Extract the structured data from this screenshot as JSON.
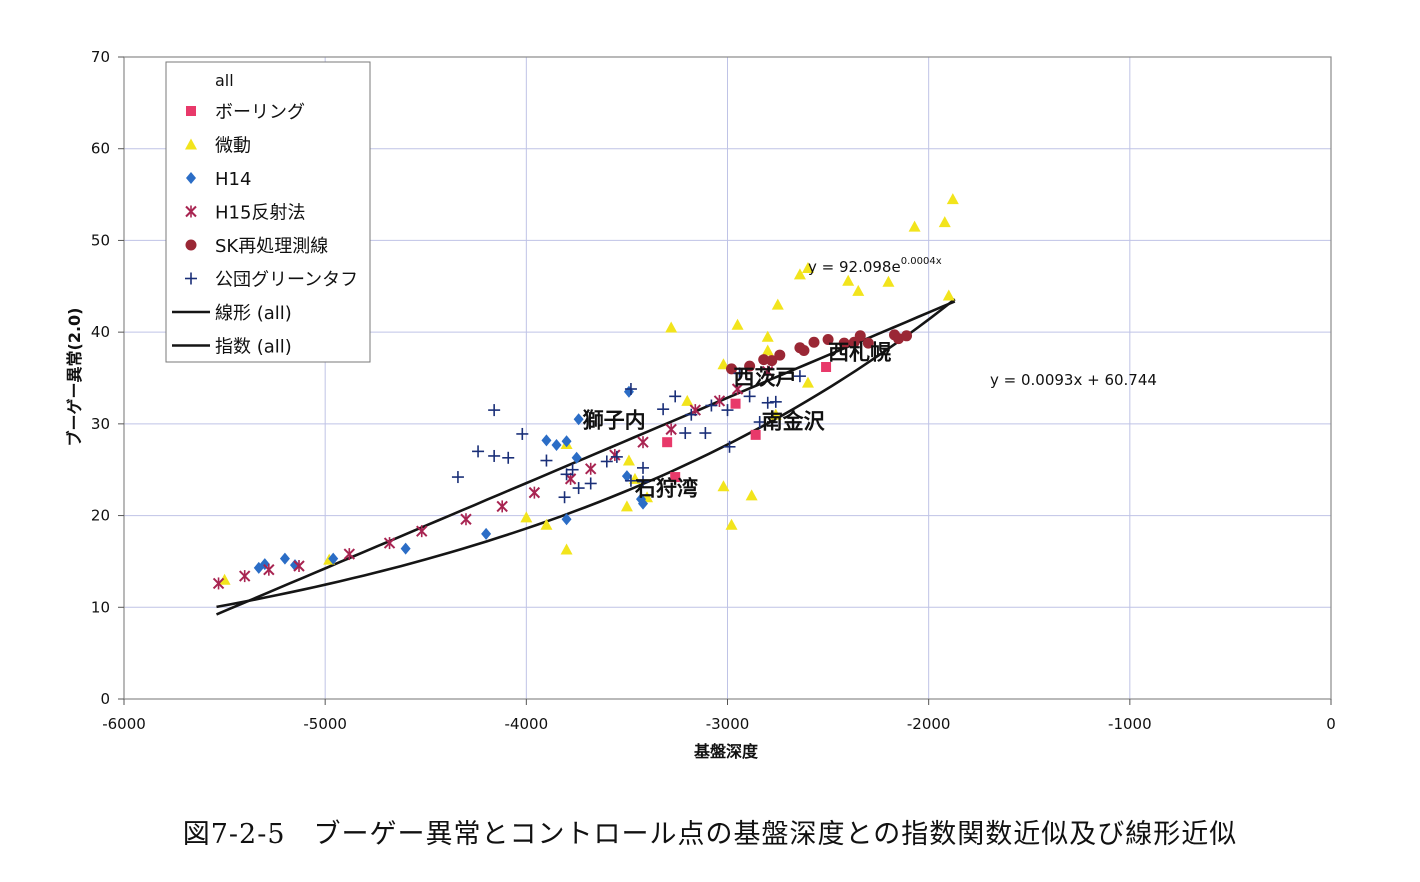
{
  "caption": "図7-2-5　ブーゲー異常とコントロール点の基盤深度との指数関数近似及び線形近似",
  "chart_data": {
    "type": "scatter",
    "title": "",
    "xlabel": "基盤深度",
    "ylabel": "ブーゲー異常(2.0)",
    "xlim": [
      -6000,
      0
    ],
    "ylim": [
      0,
      70
    ],
    "xticks": [
      -6000,
      -5000,
      -4000,
      -3000,
      -2000,
      -1000,
      0
    ],
    "yticks": [
      0,
      10,
      20,
      30,
      40,
      50,
      60,
      70
    ],
    "grid": true,
    "legend_position": "top-left",
    "legend_title": "all",
    "series": [
      {
        "name": "ボーリング",
        "marker": "square",
        "color": "#e8396a",
        "points": [
          [
            -3300,
            28
          ],
          [
            -3260,
            24.2
          ],
          [
            -2860,
            28.8
          ],
          [
            -2960,
            32.2
          ],
          [
            -2510,
            36.2
          ]
        ]
      },
      {
        "name": "微動",
        "marker": "triangle",
        "color": "#f2e41c",
        "points": [
          [
            -5500,
            13
          ],
          [
            -4980,
            15.2
          ],
          [
            -4000,
            19.8
          ],
          [
            -3900,
            19
          ],
          [
            -3800,
            16.3
          ],
          [
            -3800,
            27.8
          ],
          [
            -3500,
            21
          ],
          [
            -3490,
            26
          ],
          [
            -3460,
            24
          ],
          [
            -3400,
            22
          ],
          [
            -3280,
            40.5
          ],
          [
            -3200,
            32.5
          ],
          [
            -3020,
            23.2
          ],
          [
            -3020,
            36.5
          ],
          [
            -2980,
            19
          ],
          [
            -2950,
            40.8
          ],
          [
            -2880,
            22.2
          ],
          [
            -2800,
            39.5
          ],
          [
            -2800,
            38
          ],
          [
            -2760,
            31
          ],
          [
            -2750,
            43
          ],
          [
            -2640,
            46.3
          ],
          [
            -2600,
            47
          ],
          [
            -2600,
            34.5
          ],
          [
            -2400,
            45.6
          ],
          [
            -2350,
            44.5
          ],
          [
            -2200,
            45.5
          ],
          [
            -2070,
            51.5
          ],
          [
            -1920,
            52
          ],
          [
            -1900,
            44
          ],
          [
            -1880,
            54.5
          ]
        ]
      },
      {
        "name": "H14",
        "marker": "diamond",
        "color": "#2b6dc6",
        "points": [
          [
            -5330,
            14.3
          ],
          [
            -5300,
            14.7
          ],
          [
            -5200,
            15.3
          ],
          [
            -5150,
            14.6
          ],
          [
            -4960,
            15.3
          ],
          [
            -4600,
            16.4
          ],
          [
            -4200,
            18
          ],
          [
            -3900,
            28.2
          ],
          [
            -3850,
            27.7
          ],
          [
            -3800,
            19.6
          ],
          [
            -3800,
            28.1
          ],
          [
            -3750,
            26.3
          ],
          [
            -3740,
            30.5
          ],
          [
            -3500,
            24.3
          ],
          [
            -3490,
            33.5
          ],
          [
            -3430,
            21.8
          ],
          [
            -3420,
            21.3
          ]
        ]
      },
      {
        "name": "H15反射法",
        "marker": "asterisk",
        "color": "#a82451",
        "points": [
          [
            -5530,
            12.6
          ],
          [
            -5400,
            13.4
          ],
          [
            -5280,
            14.1
          ],
          [
            -5130,
            14.5
          ],
          [
            -4880,
            15.8
          ],
          [
            -4680,
            17
          ],
          [
            -4520,
            18.3
          ],
          [
            -4300,
            19.6
          ],
          [
            -4120,
            21
          ],
          [
            -3960,
            22.5
          ],
          [
            -3780,
            24
          ],
          [
            -3680,
            25.1
          ],
          [
            -3560,
            26.6
          ],
          [
            -3420,
            28
          ],
          [
            -3280,
            29.4
          ],
          [
            -3160,
            31.5
          ],
          [
            -3040,
            32.5
          ],
          [
            -2950,
            33.8
          ],
          [
            -2800,
            35.7
          ]
        ]
      },
      {
        "name": "SK再処理測線",
        "marker": "circle",
        "color": "#9a2735",
        "points": [
          [
            -2980,
            36
          ],
          [
            -2890,
            36.3
          ],
          [
            -2820,
            37
          ],
          [
            -2780,
            36.9
          ],
          [
            -2740,
            37.5
          ],
          [
            -2640,
            38.3
          ],
          [
            -2620,
            38
          ],
          [
            -2570,
            38.9
          ],
          [
            -2500,
            39.2
          ],
          [
            -2420,
            38.8
          ],
          [
            -2370,
            38.9
          ],
          [
            -2340,
            39.6
          ],
          [
            -2300,
            38.8
          ],
          [
            -2170,
            39.7
          ],
          [
            -2150,
            39.3
          ],
          [
            -2110,
            39.6
          ]
        ]
      },
      {
        "name": "公団グリーンタフ",
        "marker": "plus",
        "color": "#1a2f78",
        "points": [
          [
            -4340,
            24.2
          ],
          [
            -4240,
            27
          ],
          [
            -4160,
            31.5
          ],
          [
            -4160,
            26.5
          ],
          [
            -4090,
            26.3
          ],
          [
            -4020,
            28.9
          ],
          [
            -3900,
            26
          ],
          [
            -3810,
            22
          ],
          [
            -3800,
            24.5
          ],
          [
            -3770,
            25
          ],
          [
            -3740,
            23
          ],
          [
            -3680,
            23.5
          ],
          [
            -3600,
            25.9
          ],
          [
            -3550,
            26.4
          ],
          [
            -3480,
            23.8
          ],
          [
            -3480,
            33.8
          ],
          [
            -3420,
            25.2
          ],
          [
            -3420,
            23.7
          ],
          [
            -3320,
            31.6
          ],
          [
            -3260,
            33
          ],
          [
            -3210,
            29
          ],
          [
            -3180,
            31
          ],
          [
            -3110,
            29
          ],
          [
            -3080,
            32
          ],
          [
            -3000,
            31.5
          ],
          [
            -2990,
            27.5
          ],
          [
            -2940,
            35.5
          ],
          [
            -2890,
            33
          ],
          [
            -2840,
            30.2
          ],
          [
            -2800,
            32.3
          ],
          [
            -2760,
            32.4
          ],
          [
            -2640,
            35.2
          ]
        ]
      }
    ],
    "fits": [
      {
        "name": "線形 (all)",
        "type": "linear",
        "slope": 0.0093,
        "intercept": 60.744,
        "x_range": [
          -5540,
          -1870
        ],
        "equation": "y = 0.0093x + 60.744"
      },
      {
        "name": "指数 (all)",
        "type": "exponential",
        "a": 92.098,
        "b": 0.0004,
        "x_range": [
          -5540,
          -1870
        ],
        "equation_base": "y = 92.098e",
        "equation_exp": "0.0004x"
      }
    ],
    "annotations": [
      {
        "text": "西札幌",
        "x": -2500,
        "y": 37
      },
      {
        "text": "西茨戸",
        "x": -2970,
        "y": 34.3
      },
      {
        "text": "獅子内",
        "x": -3720,
        "y": 29.6
      },
      {
        "text": "南金沢",
        "x": -2830,
        "y": 29.5
      },
      {
        "text": "石狩湾",
        "x": -3460,
        "y": 22.2
      }
    ]
  }
}
